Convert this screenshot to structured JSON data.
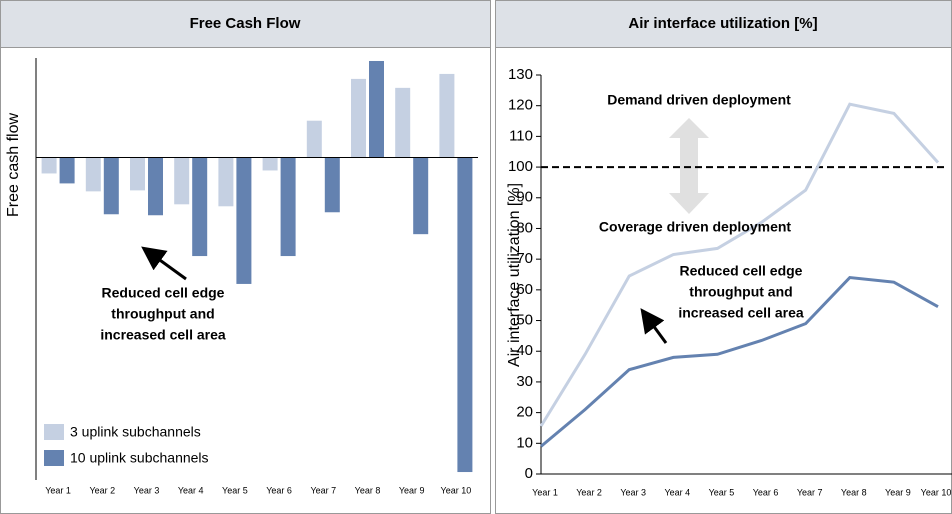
{
  "chart_data": [
    {
      "type": "bar",
      "title": "Free Cash Flow",
      "ylabel": "Free cash flow",
      "categories": [
        "Year 1",
        "Year 2",
        "Year 3",
        "Year 4",
        "Year 5",
        "Year 6",
        "Year 7",
        "Year 8",
        "Year 9",
        "Year 10"
      ],
      "series": [
        {
          "name": "3 uplink subchannels",
          "color": "#c5d0e2",
          "values": [
            -16,
            -34,
            -33,
            -47,
            -49,
            -13,
            37,
            79,
            70,
            84
          ]
        },
        {
          "name": "10 uplink subchannels",
          "color": "#6482b0",
          "values": [
            -26,
            -57,
            -58,
            -99,
            -127,
            -99,
            -55,
            97,
            -77,
            -316
          ]
        }
      ],
      "ylim": [
        -324,
        100
      ],
      "legend": "lower left",
      "annotations": [
        [
          "Reduced cell edge",
          "throughput and",
          "increased cell area"
        ]
      ]
    },
    {
      "type": "line",
      "title": "Air interface utilization [%]",
      "ylabel": "Air interface utilization [%]",
      "categories": [
        "Year 1",
        "Year 2",
        "Year 3",
        "Year 4",
        "Year 5",
        "Year 6",
        "Year 7",
        "Year 8",
        "Year 9",
        "Year 10"
      ],
      "series": [
        {
          "color": "#c5d0e2",
          "values": [
            15.6,
            39,
            64.5,
            71.5,
            73.5,
            82,
            92.5,
            120.5,
            117.5,
            101.5
          ]
        },
        {
          "color": "#6482b0",
          "values": [
            9,
            21,
            34,
            38,
            39,
            43.5,
            49,
            64,
            62.5,
            54.5
          ]
        }
      ],
      "ylim": [
        0,
        130
      ],
      "yticks": [
        0,
        10,
        20,
        30,
        40,
        50,
        60,
        70,
        80,
        90,
        100,
        110,
        120,
        130
      ],
      "hline": 100,
      "annotations": [
        [
          "Demand driven deployment"
        ],
        [
          "Coverage driven deployment"
        ],
        [
          "Reduced cell edge",
          "throughput and",
          "increased cell area"
        ]
      ]
    }
  ]
}
